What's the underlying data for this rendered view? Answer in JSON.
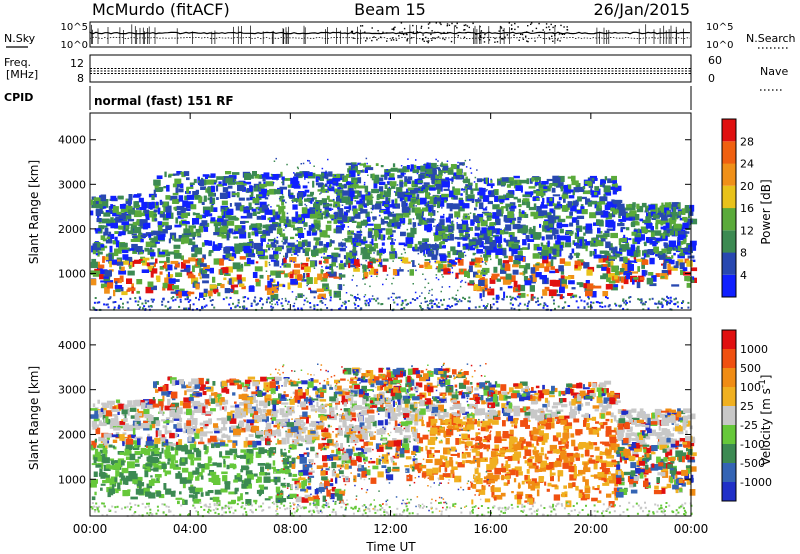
{
  "header": {
    "station": "McMurdo (fitACF)",
    "beam": "Beam 15",
    "date": "26/Jan/2015"
  },
  "status_panel": {
    "nsky_label": "N.Sky",
    "nsearch_label": "N.Search",
    "freq_label_line1": "Freq.",
    "freq_label_line2": "[MHz]",
    "nave_label": "Nave",
    "cpid_label": "CPID",
    "mode_text": "normal (fast) 151 RF",
    "left_tick_top": "10^5",
    "left_tick_bottom": "10^0",
    "right_tick_top": "10^5",
    "right_tick_bottom": "10^0",
    "freq_tick_top": "12",
    "freq_tick_bottom": "8",
    "nave_tick_top": "60",
    "nave_tick_bottom": "0"
  },
  "colors": {
    "power_scale": [
      "#1020ff",
      "#2848b0",
      "#3c8a52",
      "#5aaa3a",
      "#e8c21a",
      "#f09018",
      "#f06010",
      "#e01010"
    ],
    "velocity_scale": [
      "#2030c8",
      "#3464b4",
      "#3c8a52",
      "#66c83a",
      "#c8c8c8",
      "#f0b020",
      "#f08c14",
      "#f05010",
      "#e01010"
    ]
  },
  "chart_data": [
    {
      "type": "heatmap",
      "panel": "power",
      "xlabel": "",
      "ylabel": "Slant Range [km]",
      "x_range": [
        "00:00",
        "24:00"
      ],
      "ylim": [
        180,
        4600
      ],
      "y_ticks": [
        "1000",
        "2000",
        "3000",
        "4000"
      ],
      "colorbar": {
        "label": "Power [dB]",
        "unit": "dB",
        "ticks": [
          "4",
          "8",
          "12",
          "16",
          "20",
          "24",
          "28"
        ]
      },
      "echo_bands": [
        {
          "start_hour": 0.0,
          "end_hour": 2.5,
          "range_km": [
            600,
            2800
          ]
        },
        {
          "start_hour": 2.5,
          "end_hour": 10.0,
          "range_km": [
            500,
            3300
          ]
        },
        {
          "start_hour": 10.0,
          "end_hour": 15.0,
          "range_km": [
            1000,
            3500
          ]
        },
        {
          "start_hour": 15.0,
          "end_hour": 21.0,
          "range_km": [
            500,
            3200
          ]
        },
        {
          "start_hour": 21.0,
          "end_hour": 24.0,
          "range_km": [
            700,
            2600
          ]
        }
      ]
    },
    {
      "type": "heatmap",
      "panel": "velocity",
      "xlabel": "Time UT",
      "ylabel": "Slant Range [km]",
      "x_range": [
        "00:00",
        "24:00"
      ],
      "ylim": [
        180,
        4600
      ],
      "y_ticks": [
        "1000",
        "2000",
        "3000",
        "4000"
      ],
      "x_ticks": [
        "00:00",
        "04:00",
        "08:00",
        "12:00",
        "16:00",
        "20:00",
        "00:00"
      ],
      "colorbar": {
        "label": "Velocity [m s^-1]",
        "unit": "m s-1",
        "ticks": [
          "1000",
          "500",
          "100",
          "25",
          "-25",
          "-100",
          "-500",
          "-1000"
        ]
      }
    }
  ]
}
